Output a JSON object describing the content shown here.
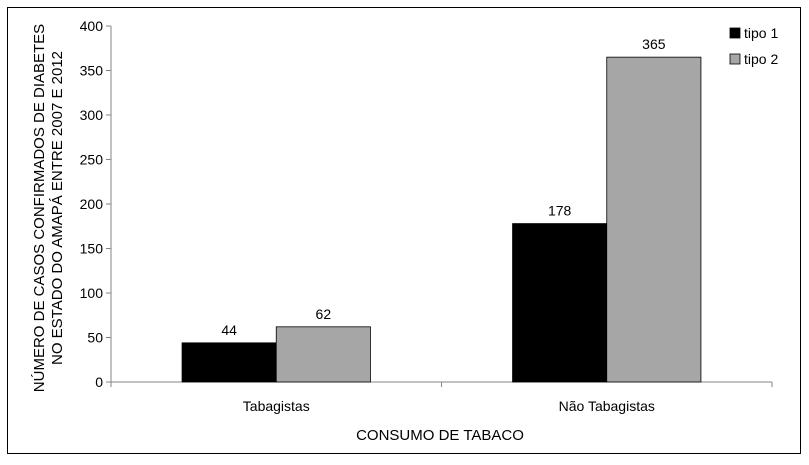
{
  "chart_data": {
    "type": "bar",
    "categories": [
      "Tabagistas",
      "Não Tabagistas"
    ],
    "series": [
      {
        "name": "tipo 1",
        "values": [
          44,
          178
        ],
        "color": "#000000"
      },
      {
        "name": "tipo 2",
        "values": [
          62,
          365
        ],
        "color": "#a6a6a6"
      }
    ],
    "xlabel": "CONSUMO DE TABACO",
    "ylabel_lines": [
      "NÚMERO DE CASOS CONFIRMADOS DE DIABETES",
      "NO ESTADO DO AMAPÁ ENTRE 2007 E 2012"
    ],
    "ylim": [
      0,
      400
    ],
    "yticks": [
      0,
      50,
      100,
      150,
      200,
      250,
      300,
      350,
      400
    ],
    "grid": false,
    "legend_position": "top-right"
  }
}
